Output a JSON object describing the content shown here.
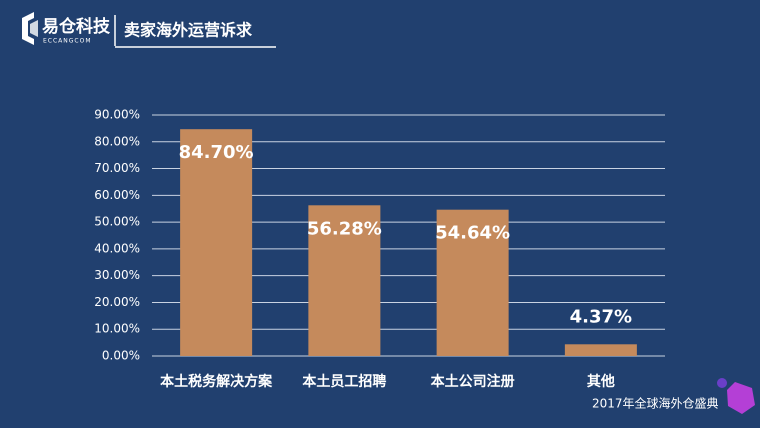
{
  "header": {
    "logo": "易仓科技",
    "logo_sub": "ECCANGCOM",
    "title": "卖家海外运营诉求"
  },
  "footer": "2017年全球海外仓盛典",
  "chart_data": {
    "type": "bar",
    "categories": [
      "本土税务解决方案",
      "本土员工招聘",
      "本土公司注册",
      "其他"
    ],
    "values": [
      84.7,
      56.28,
      54.64,
      4.37
    ],
    "value_labels": [
      "84.70%",
      "56.28%",
      "54.64%",
      "4.37%"
    ],
    "color": "#c58a5c",
    "ylim": [
      0,
      90
    ],
    "yticks": [
      {
        "value": 0,
        "label": "0.00%"
      },
      {
        "value": 10,
        "label": "10.00%"
      },
      {
        "value": 20,
        "label": "20.00%"
      },
      {
        "value": 30,
        "label": "30.00%"
      },
      {
        "value": 40,
        "label": "40.00%"
      },
      {
        "value": 50,
        "label": "50.00%"
      },
      {
        "value": 60,
        "label": "60.00%"
      },
      {
        "value": 70,
        "label": "70.00%"
      },
      {
        "value": 80,
        "label": "80.00%"
      },
      {
        "value": 90,
        "label": "90.00%"
      }
    ],
    "grid": true
  }
}
